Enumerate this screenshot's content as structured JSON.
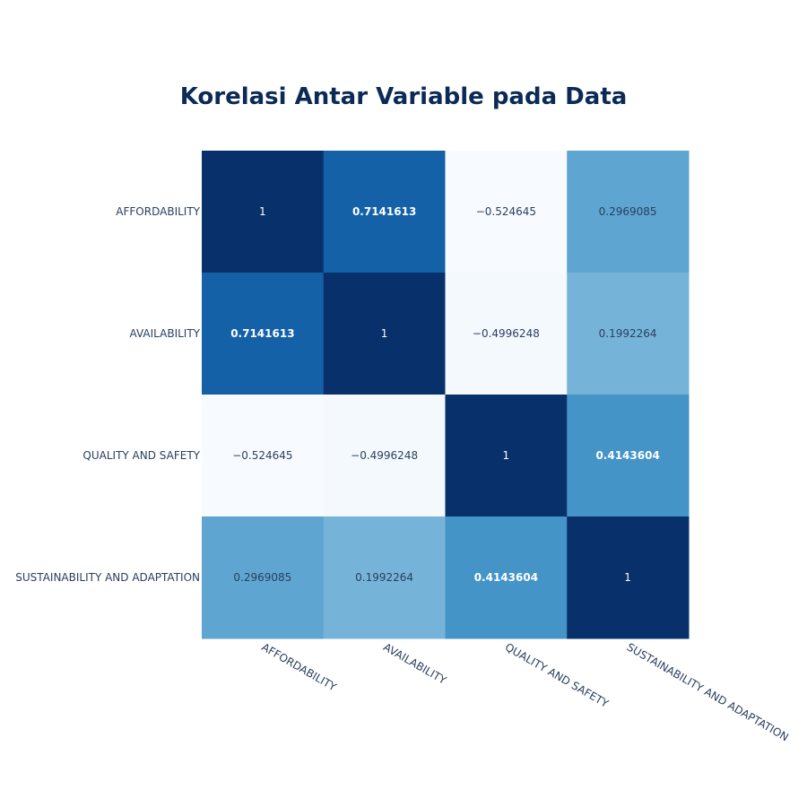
{
  "chart_data": {
    "type": "heatmap",
    "title": "Korelasi Antar Variable pada Data",
    "x_categories": [
      "AFFORDABILITY",
      "AVAILABILITY",
      "QUALITY AND SAFETY",
      "SUSTAINABILITY AND ADAPTATION"
    ],
    "y_categories": [
      "AFFORDABILITY",
      "AVAILABILITY",
      "QUALITY AND SAFETY",
      "SUSTAINABILITY AND ADAPTATION"
    ],
    "values": [
      [
        1,
        0.7141613,
        -0.524645,
        0.2969085
      ],
      [
        0.7141613,
        1,
        -0.4996248,
        0.1992264
      ],
      [
        -0.524645,
        -0.4996248,
        1,
        0.4143604
      ],
      [
        0.2969085,
        0.1992264,
        0.4143604,
        1
      ]
    ],
    "cell_labels": [
      [
        "1",
        "0.7141613",
        "−0.524645",
        "0.2969085"
      ],
      [
        "0.7141613",
        "1",
        "−0.4996248",
        "0.1992264"
      ],
      [
        "−0.524645",
        "−0.4996248",
        "1",
        "0.4143604"
      ],
      [
        "0.2969085",
        "0.1992264",
        "0.4143604",
        "1"
      ]
    ],
    "colorscale": "Blues",
    "colorscale_stops": [
      "#f7fbff",
      "#deebf7",
      "#c6dbef",
      "#9ecae1",
      "#6baed6",
      "#4292c6",
      "#2171b5",
      "#08519c",
      "#08306b"
    ],
    "zmin": -0.524645,
    "zmax": 1,
    "showscale": false,
    "xlabel": "",
    "ylabel": ""
  }
}
